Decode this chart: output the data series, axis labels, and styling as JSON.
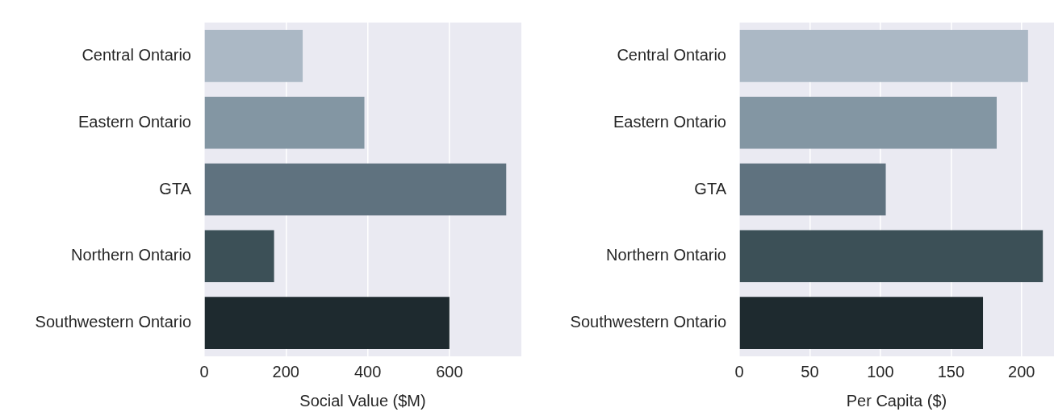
{
  "chart_data": [
    {
      "type": "bar",
      "orientation": "horizontal",
      "categories": [
        "Central Ontario",
        "Eastern Ontario",
        "GTA",
        "Northern Ontario",
        "Southwestern Ontario"
      ],
      "values": [
        241,
        392,
        739,
        171,
        600
      ],
      "colors": [
        "#abb8c5",
        "#8396a3",
        "#5f727f",
        "#3c5057",
        "#1e2a2f"
      ],
      "xlabel": "Social Value ($M)",
      "xlim": [
        0,
        776
      ],
      "xticks": [
        0,
        200,
        400,
        600
      ],
      "grid": "x",
      "legend": false
    },
    {
      "type": "bar",
      "orientation": "horizontal",
      "categories": [
        "Central Ontario",
        "Eastern Ontario",
        "GTA",
        "Northern Ontario",
        "Southwestern Ontario"
      ],
      "values": [
        204.6,
        182.4,
        103.8,
        215.1,
        172.7
      ],
      "colors": [
        "#abb8c5",
        "#8396a3",
        "#5f727f",
        "#3c5057",
        "#1e2a2f"
      ],
      "xlabel": "Per Capita ($)",
      "xlim": [
        0,
        223
      ],
      "xticks": [
        0,
        50,
        100,
        150,
        200
      ],
      "grid": "x",
      "legend": false
    }
  ]
}
